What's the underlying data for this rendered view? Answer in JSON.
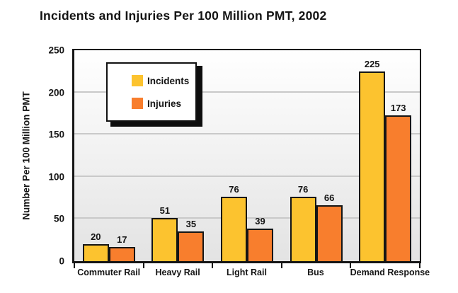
{
  "title": "Incidents and Injuries Per 100 Million PMT, 2002",
  "colors": {
    "incidents": "#FCC32F",
    "injuries": "#F87E2D",
    "bar_outline": "#151515",
    "gridline": "#c9c9c9"
  },
  "chart_data": {
    "type": "bar",
    "title": "Incidents and Injuries Per 100 Million PMT, 2002",
    "categories": [
      "Commuter Rail",
      "Heavy Rail",
      "Light Rail",
      "Bus",
      "Demand Response"
    ],
    "series": [
      {
        "name": "Incidents",
        "color": "#FCC32F",
        "values": [
          20,
          51,
          76,
          76,
          225
        ]
      },
      {
        "name": "Injuries",
        "color": "#F87E2D",
        "values": [
          17,
          35,
          39,
          66,
          173
        ]
      }
    ],
    "xlabel": "",
    "ylabel": "Number Per 100 Million PMT",
    "ylim": [
      0,
      250
    ],
    "yticks": [
      0,
      50,
      100,
      150,
      200,
      250
    ],
    "grid": true,
    "legend_position": "top-left-inside",
    "data_labels": true
  }
}
